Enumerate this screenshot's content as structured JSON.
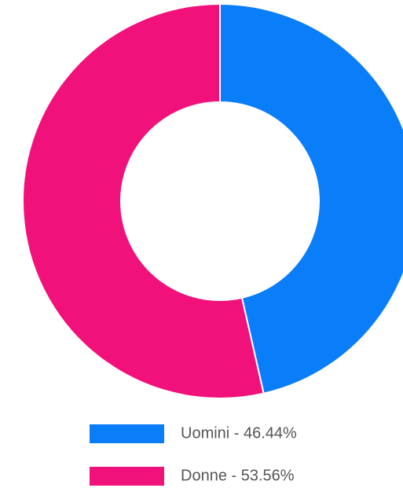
{
  "chart_data": {
    "type": "donut",
    "categories": [
      "Uomini - 46.44%",
      "Donne - 53.56%"
    ],
    "values": [
      46.44,
      53.56
    ],
    "colors": [
      "#0a7df8",
      "#f0117a"
    ]
  }
}
